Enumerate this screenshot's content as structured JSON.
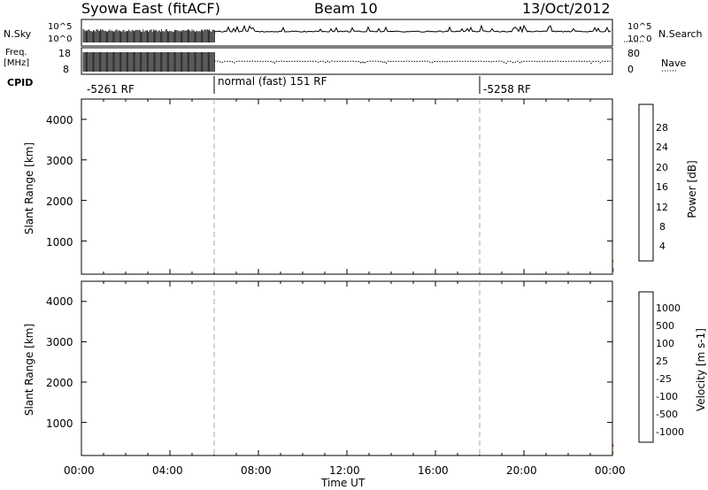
{
  "header": {
    "station": "Syowa East (fitACF)",
    "beam": "Beam 10",
    "date": "13/Oct/2012"
  },
  "panels": {
    "nsky_label": "N.Sky",
    "nsky_ticks": [
      "10^5",
      "10^0"
    ],
    "nsearch_label": "N.Search",
    "nsearch_ticks": [
      "10^5",
      "10^0"
    ],
    "freq_label_1": "Freq.",
    "freq_label_2": "[MHz]",
    "freq_ticks": [
      "18",
      "8"
    ],
    "nave_label": "Nave",
    "nave_ticks": [
      "80",
      "0"
    ],
    "cpid_label": "CPID",
    "cpid_segments": [
      {
        "label": "-5261 RF",
        "start_h": 0,
        "end_h": 6
      },
      {
        "label": "normal (fast) 151 RF",
        "start_h": 6,
        "end_h": 18
      },
      {
        "label": "-5258 RF",
        "start_h": 18,
        "end_h": 24
      }
    ]
  },
  "colors": {
    "power": [
      "#0000ff",
      "#1f3fa8",
      "#2f6b3f",
      "#3c9a5a",
      "#8fcf3f",
      "#f0c020",
      "#f08a10",
      "#f05a10",
      "#ff0000"
    ],
    "velocity": [
      "#ff0000",
      "#f05a10",
      "#f08a10",
      "#f0c020",
      "#c8c8c8",
      "#8fcf3f",
      "#3c9a5a",
      "#2f6b8f",
      "#1f3fa8",
      "#0000ff"
    ]
  },
  "chart_data": [
    {
      "type": "heatmap",
      "name": "power",
      "ylabel": "Slant Range [km]",
      "colorbar_label": "Power [dB]",
      "colorbar_ticks": [
        "28",
        "24",
        "20",
        "16",
        "12",
        "8",
        "4"
      ],
      "colorbar_range": [
        0,
        32
      ],
      "ylim": [
        180,
        4500
      ],
      "yticks": [
        "1000",
        "2000",
        "3000",
        "4000"
      ],
      "xlim_h": [
        0,
        24
      ],
      "xticks": [
        "00:00",
        "04:00",
        "08:00",
        "12:00",
        "16:00",
        "20:00",
        "00:00"
      ],
      "xlabel": ""
    },
    {
      "type": "heatmap",
      "name": "velocity",
      "ylabel": "Slant Range [km]",
      "colorbar_label": "Velocity [m s-1]",
      "colorbar_ticks": [
        "1000",
        "500",
        "100",
        "25",
        "-25",
        "-100",
        "-500",
        "-1000"
      ],
      "ylim": [
        180,
        4500
      ],
      "yticks": [
        "1000",
        "2000",
        "3000",
        "4000"
      ],
      "xlim_h": [
        0,
        24
      ],
      "xticks": [
        "00:00",
        "04:00",
        "08:00",
        "12:00",
        "16:00",
        "20:00",
        "00:00"
      ],
      "xlabel": "Time UT"
    }
  ]
}
